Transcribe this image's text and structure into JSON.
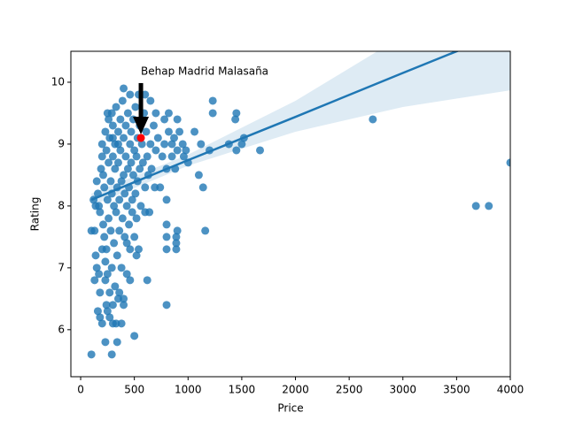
{
  "chart_data": {
    "type": "scatter",
    "xlabel": "Price",
    "ylabel": "Rating",
    "xlim": [
      -91,
      4000
    ],
    "ylim": [
      5.24,
      10.5
    ],
    "xticks": [
      0,
      500,
      1000,
      1500,
      2000,
      2500,
      3000,
      3500,
      4000
    ],
    "yticks": [
      6,
      7,
      8,
      9,
      10
    ],
    "color": "#1f77b4",
    "x": [
      150,
      160,
      170,
      180,
      190,
      200,
      200,
      210,
      210,
      220,
      220,
      230,
      230,
      240,
      240,
      250,
      250,
      260,
      260,
      260,
      270,
      270,
      280,
      280,
      290,
      290,
      290,
      300,
      300,
      300,
      310,
      310,
      320,
      320,
      320,
      330,
      330,
      340,
      340,
      350,
      350,
      350,
      360,
      360,
      370,
      370,
      380,
      380,
      390,
      390,
      400,
      400,
      400,
      410,
      410,
      420,
      420,
      430,
      430,
      440,
      440,
      450,
      450,
      460,
      460,
      470,
      470,
      480,
      480,
      490,
      490,
      500,
      500,
      510,
      510,
      520,
      520,
      530,
      530,
      540,
      550,
      550,
      560,
      570,
      580,
      590,
      600,
      600,
      610,
      620,
      630,
      640,
      650,
      660,
      680,
      690,
      700,
      720,
      740,
      760,
      780,
      800,
      800,
      820,
      850,
      870,
      880,
      900,
      920,
      950,
      980,
      130,
      140,
      170,
      180,
      200,
      230,
      250,
      270,
      330,
      360,
      380,
      400,
      430,
      460,
      520,
      140,
      120,
      300,
      350,
      2720,
      3680,
      3800,
      4000,
      1670,
      1520,
      1500,
      1450,
      1440,
      1450,
      1380,
      1230,
      1230,
      1200,
      1160,
      1140,
      1120,
      1100,
      1060,
      1000,
      960,
      900,
      900,
      890,
      890,
      890,
      800,
      800,
      800,
      800,
      620,
      500,
      100,
      290,
      230,
      340,
      160,
      180,
      200,
      100,
      130,
      150,
      240,
      300,
      400,
      460,
      540,
      600,
      650,
      250,
      700,
      780,
      820,
      850
    ],
    "values": [
      8.4,
      8.2,
      8.0,
      7.9,
      8.6,
      8.8,
      9.0,
      8.5,
      7.7,
      7.5,
      8.3,
      9.2,
      7.1,
      8.9,
      7.3,
      8.1,
      6.9,
      9.4,
      8.7,
      7.8,
      9.1,
      6.6,
      8.4,
      7.6,
      9.5,
      8.2,
      7.0,
      9.3,
      8.8,
      6.4,
      8.0,
      7.4,
      9.0,
      8.6,
      6.7,
      9.6,
      7.9,
      8.3,
      7.2,
      9.2,
      8.7,
      6.5,
      8.1,
      7.6,
      9.4,
      8.9,
      8.4,
      7.0,
      9.7,
      7.8,
      9.1,
      8.5,
      6.4,
      8.2,
      7.5,
      9.3,
      8.8,
      8.0,
      6.9,
      9.5,
      8.6,
      7.7,
      8.3,
      9.0,
      7.3,
      9.2,
      8.7,
      8.1,
      7.9,
      9.4,
      8.5,
      8.9,
      7.5,
      9.6,
      8.2,
      8.8,
      7.8,
      9.1,
      8.4,
      7.3,
      9.3,
      8.6,
      8.0,
      9.0,
      8.7,
      9.5,
      8.3,
      7.9,
      9.2,
      8.8,
      8.5,
      7.9,
      9.0,
      8.6,
      9.3,
      8.3,
      8.9,
      9.1,
      8.3,
      8.8,
      9.0,
      8.6,
      8.1,
      9.2,
      8.8,
      9.1,
      8.6,
      8.9,
      9.2,
      9.0,
      8.9,
      7.6,
      7.2,
      6.9,
      6.6,
      7.3,
      6.8,
      6.3,
      6.2,
      6.1,
      6.6,
      6.1,
      6.5,
      7.4,
      6.8,
      7.2,
      8.0,
      8.1,
      9.1,
      9.0,
      9.4,
      8.0,
      8.0,
      8.7,
      8.9,
      9.1,
      9.0,
      9.5,
      9.4,
      8.9,
      9.0,
      9.7,
      9.5,
      8.9,
      7.6,
      8.3,
      9.0,
      8.5,
      9.2,
      8.7,
      8.8,
      9.4,
      7.6,
      7.5,
      7.4,
      7.3,
      6.4,
      7.7,
      7.5,
      7.3,
      6.8,
      5.9,
      5.6,
      5.6,
      5.8,
      5.8,
      6.3,
      6.2,
      6.1,
      7.6,
      6.8,
      7.0,
      6.4,
      6.1,
      9.9,
      9.8,
      9.8,
      9.8,
      9.7,
      9.5,
      9.5,
      9.4,
      9.5,
      9.0
    ],
    "regression": {
      "x": [
        100,
        1000,
        2000,
        3000,
        4000
      ],
      "y": [
        8.1,
        8.74,
        9.44,
        10.15,
        10.85
      ],
      "lower": [
        8.0,
        8.65,
        9.2,
        9.6,
        9.87
      ],
      "upper": [
        8.2,
        8.83,
        9.7,
        10.75,
        11.8
      ]
    },
    "annotation": {
      "text": "Behap Madrid Malasaña",
      "x": 561,
      "y": 9.1,
      "color": "#ff0000"
    }
  }
}
